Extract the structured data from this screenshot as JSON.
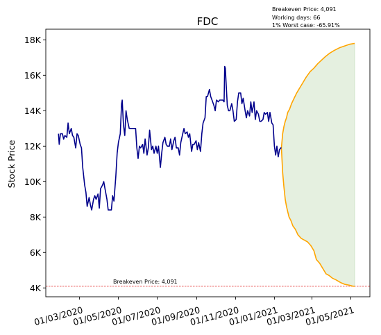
{
  "chart_data": {
    "type": "line",
    "title": "FDC",
    "ylabel": "Stock Price",
    "xlabel": "",
    "ylim": [
      3500,
      18600
    ],
    "xlim": [
      "2020-01-08",
      "2021-05-31"
    ],
    "y_ticks": [
      4000,
      6000,
      8000,
      10000,
      12000,
      14000,
      16000,
      18000
    ],
    "y_tick_labels": [
      "4K",
      "6K",
      "8K",
      "10K",
      "12K",
      "14K",
      "16K",
      "18K"
    ],
    "x_ticks": [
      "2020-03-01",
      "2020-05-01",
      "2020-07-01",
      "2020-09-01",
      "2020-11-01",
      "2021-01-01",
      "2021-03-01",
      "2021-05-01"
    ],
    "x_tick_labels": [
      "01/03/2020",
      "01/05/2020",
      "01/07/2020",
      "01/09/2020",
      "01/11/2020",
      "01/01/2021",
      "01/03/2021",
      "01/05/2021"
    ],
    "annotations": {
      "breakeven_line_label": "Breakeven Price: 4,091",
      "info_lines": [
        "Breakeven Price: 4,091",
        "Working days: 66",
        "1% Worst case: -65.91%"
      ]
    },
    "breakeven_price": 4091,
    "grid": false,
    "colors": {
      "history": "#00008b",
      "projection": "#ffa500",
      "band_fill": "#e5f0e0",
      "band_edge": "#cfe3c8",
      "breakeven": "#dd0000"
    },
    "series": [
      {
        "role": "history",
        "points": [
          [
            "2020-01-28",
            12700
          ],
          [
            "2020-01-29",
            12100
          ],
          [
            "2020-01-31",
            12700
          ],
          [
            "2020-02-03",
            12700
          ],
          [
            "2020-02-05",
            12400
          ],
          [
            "2020-02-07",
            12600
          ],
          [
            "2020-02-10",
            12500
          ],
          [
            "2020-02-12",
            13300
          ],
          [
            "2020-02-14",
            12700
          ],
          [
            "2020-02-17",
            13000
          ],
          [
            "2020-02-19",
            12600
          ],
          [
            "2020-02-21",
            12500
          ],
          [
            "2020-02-24",
            11900
          ],
          [
            "2020-02-26",
            12700
          ],
          [
            "2020-02-28",
            12600
          ],
          [
            "2020-03-02",
            12100
          ],
          [
            "2020-03-04",
            11900
          ],
          [
            "2020-03-06",
            10800
          ],
          [
            "2020-03-09",
            9800
          ],
          [
            "2020-03-11",
            9400
          ],
          [
            "2020-03-13",
            8600
          ],
          [
            "2020-03-16",
            9100
          ],
          [
            "2020-03-18",
            8700
          ],
          [
            "2020-03-20",
            8400
          ],
          [
            "2020-03-23",
            9000
          ],
          [
            "2020-03-25",
            9200
          ],
          [
            "2020-03-27",
            9000
          ],
          [
            "2020-03-30",
            9300
          ],
          [
            "2020-04-01",
            8500
          ],
          [
            "2020-04-03",
            9600
          ],
          [
            "2020-04-06",
            9800
          ],
          [
            "2020-04-08",
            10000
          ],
          [
            "2020-04-10",
            9600
          ],
          [
            "2020-04-13",
            9000
          ],
          [
            "2020-04-15",
            8400
          ],
          [
            "2020-04-17",
            8400
          ],
          [
            "2020-04-20",
            8400
          ],
          [
            "2020-04-22",
            9200
          ],
          [
            "2020-04-24",
            8900
          ],
          [
            "2020-04-27",
            10300
          ],
          [
            "2020-04-29",
            11600
          ],
          [
            "2020-05-01",
            12200
          ],
          [
            "2020-05-04",
            12700
          ],
          [
            "2020-05-06",
            14400
          ],
          [
            "2020-05-07",
            14600
          ],
          [
            "2020-05-09",
            13200
          ],
          [
            "2020-05-11",
            12600
          ],
          [
            "2020-05-13",
            14000
          ],
          [
            "2020-05-15",
            13500
          ],
          [
            "2020-05-18",
            13000
          ],
          [
            "2020-05-20",
            13000
          ],
          [
            "2020-05-22",
            13000
          ],
          [
            "2020-05-26",
            13000
          ],
          [
            "2020-05-28",
            13000
          ],
          [
            "2020-05-30",
            11900
          ],
          [
            "2020-06-01",
            11300
          ],
          [
            "2020-06-03",
            12000
          ],
          [
            "2020-06-05",
            11900
          ],
          [
            "2020-06-08",
            12100
          ],
          [
            "2020-06-10",
            11600
          ],
          [
            "2020-06-12",
            12400
          ],
          [
            "2020-06-15",
            11500
          ],
          [
            "2020-06-17",
            11900
          ],
          [
            "2020-06-19",
            12900
          ],
          [
            "2020-06-22",
            11800
          ],
          [
            "2020-06-24",
            12000
          ],
          [
            "2020-06-26",
            11600
          ],
          [
            "2020-06-29",
            12000
          ],
          [
            "2020-07-01",
            11600
          ],
          [
            "2020-07-03",
            12000
          ],
          [
            "2020-07-06",
            10800
          ],
          [
            "2020-07-08",
            11600
          ],
          [
            "2020-07-10",
            12200
          ],
          [
            "2020-07-13",
            12500
          ],
          [
            "2020-07-15",
            12100
          ],
          [
            "2020-07-17",
            12000
          ],
          [
            "2020-07-20",
            12000
          ],
          [
            "2020-07-22",
            12400
          ],
          [
            "2020-07-24",
            11800
          ],
          [
            "2020-07-27",
            12300
          ],
          [
            "2020-07-29",
            12500
          ],
          [
            "2020-07-31",
            11900
          ],
          [
            "2020-08-03",
            11900
          ],
          [
            "2020-08-05",
            11500
          ],
          [
            "2020-08-07",
            12200
          ],
          [
            "2020-08-10",
            12700
          ],
          [
            "2020-08-12",
            13000
          ],
          [
            "2020-08-14",
            12700
          ],
          [
            "2020-08-17",
            12800
          ],
          [
            "2020-08-19",
            12500
          ],
          [
            "2020-08-21",
            12700
          ],
          [
            "2020-08-24",
            11700
          ],
          [
            "2020-08-26",
            12100
          ],
          [
            "2020-08-28",
            12100
          ],
          [
            "2020-08-31",
            12300
          ],
          [
            "2020-09-02",
            11800
          ],
          [
            "2020-09-04",
            12200
          ],
          [
            "2020-09-07",
            11700
          ],
          [
            "2020-09-09",
            12700
          ],
          [
            "2020-09-11",
            13300
          ],
          [
            "2020-09-14",
            13600
          ],
          [
            "2020-09-16",
            14800
          ],
          [
            "2020-09-18",
            14800
          ],
          [
            "2020-09-21",
            15200
          ],
          [
            "2020-09-23",
            14800
          ],
          [
            "2020-09-25",
            14600
          ],
          [
            "2020-09-28",
            14300
          ],
          [
            "2020-09-30",
            14000
          ],
          [
            "2020-10-02",
            14600
          ],
          [
            "2020-10-05",
            14500
          ],
          [
            "2020-10-07",
            14600
          ],
          [
            "2020-10-09",
            14600
          ],
          [
            "2020-10-12",
            14600
          ],
          [
            "2020-10-14",
            14500
          ],
          [
            "2020-10-15",
            16500
          ],
          [
            "2020-10-16",
            16400
          ],
          [
            "2020-10-19",
            14300
          ],
          [
            "2020-10-21",
            14000
          ],
          [
            "2020-10-23",
            14000
          ],
          [
            "2020-10-26",
            14400
          ],
          [
            "2020-10-28",
            14000
          ],
          [
            "2020-10-30",
            13400
          ],
          [
            "2020-11-02",
            13500
          ],
          [
            "2020-11-04",
            14500
          ],
          [
            "2020-11-06",
            15000
          ],
          [
            "2020-11-09",
            15000
          ],
          [
            "2020-11-11",
            14400
          ],
          [
            "2020-11-13",
            14700
          ],
          [
            "2020-11-16",
            14000
          ],
          [
            "2020-11-18",
            13600
          ],
          [
            "2020-11-20",
            14000
          ],
          [
            "2020-11-23",
            13700
          ],
          [
            "2020-11-25",
            14500
          ],
          [
            "2020-11-27",
            13900
          ],
          [
            "2020-11-30",
            14500
          ],
          [
            "2020-12-02",
            13500
          ],
          [
            "2020-12-04",
            14000
          ],
          [
            "2020-12-07",
            13800
          ],
          [
            "2020-12-09",
            13400
          ],
          [
            "2020-12-11",
            13400
          ],
          [
            "2020-12-14",
            13500
          ],
          [
            "2020-12-16",
            13900
          ],
          [
            "2020-12-18",
            13800
          ],
          [
            "2020-12-21",
            13900
          ],
          [
            "2020-12-23",
            13400
          ],
          [
            "2020-12-25",
            13900
          ],
          [
            "2020-12-28",
            13300
          ],
          [
            "2020-12-30",
            13200
          ],
          [
            "2021-01-01",
            12000
          ],
          [
            "2021-01-03",
            11500
          ],
          [
            "2021-01-05",
            12000
          ],
          [
            "2021-01-07",
            11400
          ],
          [
            "2021-01-09",
            11800
          ],
          [
            "2021-01-11",
            11900
          ],
          [
            "2021-01-12",
            11900
          ]
        ]
      },
      {
        "role": "projection-lower",
        "points": [
          [
            "2021-01-12",
            11900
          ],
          [
            "2021-01-14",
            10500
          ],
          [
            "2021-01-16",
            9700
          ],
          [
            "2021-01-18",
            9000
          ],
          [
            "2021-01-20",
            8600
          ],
          [
            "2021-01-22",
            8300
          ],
          [
            "2021-01-24",
            8000
          ],
          [
            "2021-01-27",
            7800
          ],
          [
            "2021-01-30",
            7500
          ],
          [
            "2021-02-03",
            7300
          ],
          [
            "2021-02-07",
            7000
          ],
          [
            "2021-02-12",
            6800
          ],
          [
            "2021-02-17",
            6700
          ],
          [
            "2021-02-22",
            6600
          ],
          [
            "2021-02-27",
            6400
          ],
          [
            "2021-03-04",
            6100
          ],
          [
            "2021-03-08",
            5600
          ],
          [
            "2021-03-13",
            5400
          ],
          [
            "2021-03-18",
            5100
          ],
          [
            "2021-03-23",
            4800
          ],
          [
            "2021-03-28",
            4700
          ],
          [
            "2021-04-02",
            4550
          ],
          [
            "2021-04-08",
            4450
          ],
          [
            "2021-04-15",
            4300
          ],
          [
            "2021-04-22",
            4200
          ],
          [
            "2021-04-29",
            4150
          ],
          [
            "2021-05-04",
            4100
          ],
          [
            "2021-05-07",
            4091
          ]
        ]
      },
      {
        "role": "projection-upper",
        "points": [
          [
            "2021-01-12",
            11900
          ],
          [
            "2021-01-14",
            12700
          ],
          [
            "2021-01-16",
            13100
          ],
          [
            "2021-01-18",
            13400
          ],
          [
            "2021-01-20",
            13600
          ],
          [
            "2021-01-22",
            13900
          ],
          [
            "2021-01-25",
            14100
          ],
          [
            "2021-01-28",
            14400
          ],
          [
            "2021-02-01",
            14700
          ],
          [
            "2021-02-05",
            15000
          ],
          [
            "2021-02-10",
            15300
          ],
          [
            "2021-02-15",
            15600
          ],
          [
            "2021-02-20",
            15900
          ],
          [
            "2021-02-26",
            16200
          ],
          [
            "2021-03-04",
            16400
          ],
          [
            "2021-03-10",
            16650
          ],
          [
            "2021-03-16",
            16850
          ],
          [
            "2021-03-22",
            17050
          ],
          [
            "2021-03-29",
            17250
          ],
          [
            "2021-04-05",
            17400
          ],
          [
            "2021-04-13",
            17550
          ],
          [
            "2021-04-21",
            17650
          ],
          [
            "2021-04-29",
            17750
          ],
          [
            "2021-05-07",
            17800
          ]
        ]
      }
    ]
  }
}
